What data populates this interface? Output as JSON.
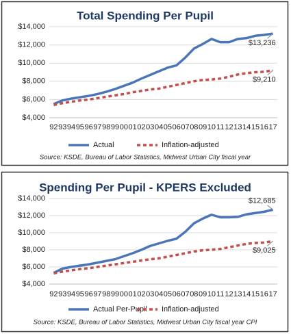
{
  "chart_data": [
    {
      "type": "line",
      "title": "Total Spending Per Pupil",
      "source": "Source: KSDE, Bureau of Labor Statistics, Midwest Urban City fiscal year",
      "categories": [
        "92",
        "93",
        "94",
        "95",
        "96",
        "97",
        "98",
        "99",
        "00",
        "01",
        "02",
        "03",
        "04",
        "05",
        "06",
        "07",
        "08",
        "09",
        "10",
        "11",
        "12",
        "13",
        "14",
        "15",
        "16",
        "17"
      ],
      "series": [
        {
          "name": "Actual",
          "color": "#4a76b8",
          "dashed": false,
          "values": [
            5500,
            5900,
            6100,
            6250,
            6400,
            6600,
            6850,
            7150,
            7500,
            7850,
            8300,
            8700,
            9100,
            9500,
            9750,
            10600,
            11600,
            12100,
            12650,
            12300,
            12300,
            12650,
            12750,
            13000,
            13100,
            13236
          ],
          "value_labels": [
            null,
            null,
            null,
            null,
            null,
            null,
            null,
            null,
            null,
            null,
            null,
            null,
            null,
            null,
            null,
            null,
            null,
            null,
            null,
            null,
            null,
            null,
            null,
            null,
            null,
            "$13,236"
          ]
        },
        {
          "name": "Inflation-adjusted",
          "color": "#c0504d",
          "dashed": true,
          "values": [
            5400,
            5600,
            5750,
            5900,
            6000,
            6150,
            6300,
            6450,
            6600,
            6800,
            6950,
            7100,
            7200,
            7400,
            7600,
            7800,
            8000,
            8150,
            8200,
            8300,
            8500,
            8750,
            8900,
            9000,
            9050,
            9210
          ],
          "value_labels": [
            null,
            null,
            null,
            null,
            null,
            null,
            null,
            null,
            null,
            null,
            null,
            null,
            null,
            null,
            null,
            null,
            null,
            null,
            null,
            null,
            null,
            null,
            null,
            null,
            null,
            "$9,210"
          ]
        }
      ],
      "ylim": [
        4000,
        14000
      ],
      "yticks": [
        {
          "value": 4000,
          "label": "$4,000"
        },
        {
          "value": 6000,
          "label": "$6,000"
        },
        {
          "value": 8000,
          "label": "$8,000"
        },
        {
          "value": 10000,
          "label": "$10,000"
        },
        {
          "value": 12000,
          "label": "$12,000"
        },
        {
          "value": 14000,
          "label": "$14,000"
        }
      ],
      "grid": true,
      "legend": "bottom"
    },
    {
      "type": "line",
      "title": "Spending Per Pupil - KPERS Excluded",
      "source": "Source: KSDE, Bureau of Labor Statistics, Midwest Urban City fiscal year CPI",
      "categories": [
        "92",
        "93",
        "94",
        "95",
        "96",
        "97",
        "98",
        "99",
        "00",
        "01",
        "02",
        "03",
        "04",
        "05",
        "06",
        "07",
        "08",
        "09",
        "10",
        "11",
        "12",
        "13",
        "14",
        "15",
        "16",
        "17"
      ],
      "series": [
        {
          "name": "Actual Per-Pupil",
          "color": "#4a76b8",
          "dashed": false,
          "values": [
            5300,
            5800,
            6000,
            6150,
            6300,
            6500,
            6700,
            6900,
            7250,
            7600,
            8000,
            8450,
            8750,
            9050,
            9300,
            10100,
            11100,
            11650,
            12100,
            11800,
            11800,
            11850,
            12150,
            12300,
            12450,
            12685
          ],
          "value_labels": [
            null,
            null,
            null,
            null,
            null,
            null,
            null,
            null,
            null,
            null,
            null,
            null,
            null,
            null,
            null,
            null,
            null,
            null,
            null,
            null,
            null,
            null,
            null,
            null,
            null,
            "$12,685"
          ]
        },
        {
          "name": "Inflation-adjusted",
          "color": "#c0504d",
          "dashed": true,
          "values": [
            5250,
            5450,
            5600,
            5750,
            5850,
            6000,
            6150,
            6300,
            6450,
            6600,
            6750,
            6900,
            7000,
            7200,
            7400,
            7600,
            7800,
            7950,
            8000,
            8100,
            8300,
            8500,
            8700,
            8800,
            8850,
            9025
          ],
          "value_labels": [
            null,
            null,
            null,
            null,
            null,
            null,
            null,
            null,
            null,
            null,
            null,
            null,
            null,
            null,
            null,
            null,
            null,
            null,
            null,
            null,
            null,
            null,
            null,
            null,
            null,
            "$9,025"
          ]
        }
      ],
      "ylim": [
        4000,
        14000
      ],
      "yticks": [
        {
          "value": 4000,
          "label": "$4,000"
        },
        {
          "value": 6000,
          "label": "$6,000"
        },
        {
          "value": 8000,
          "label": "$8,000"
        },
        {
          "value": 10000,
          "label": "$10,000"
        },
        {
          "value": 12000,
          "label": "$12,000"
        },
        {
          "value": 14000,
          "label": "$14,000"
        }
      ],
      "grid": true,
      "legend": "bottom"
    }
  ]
}
